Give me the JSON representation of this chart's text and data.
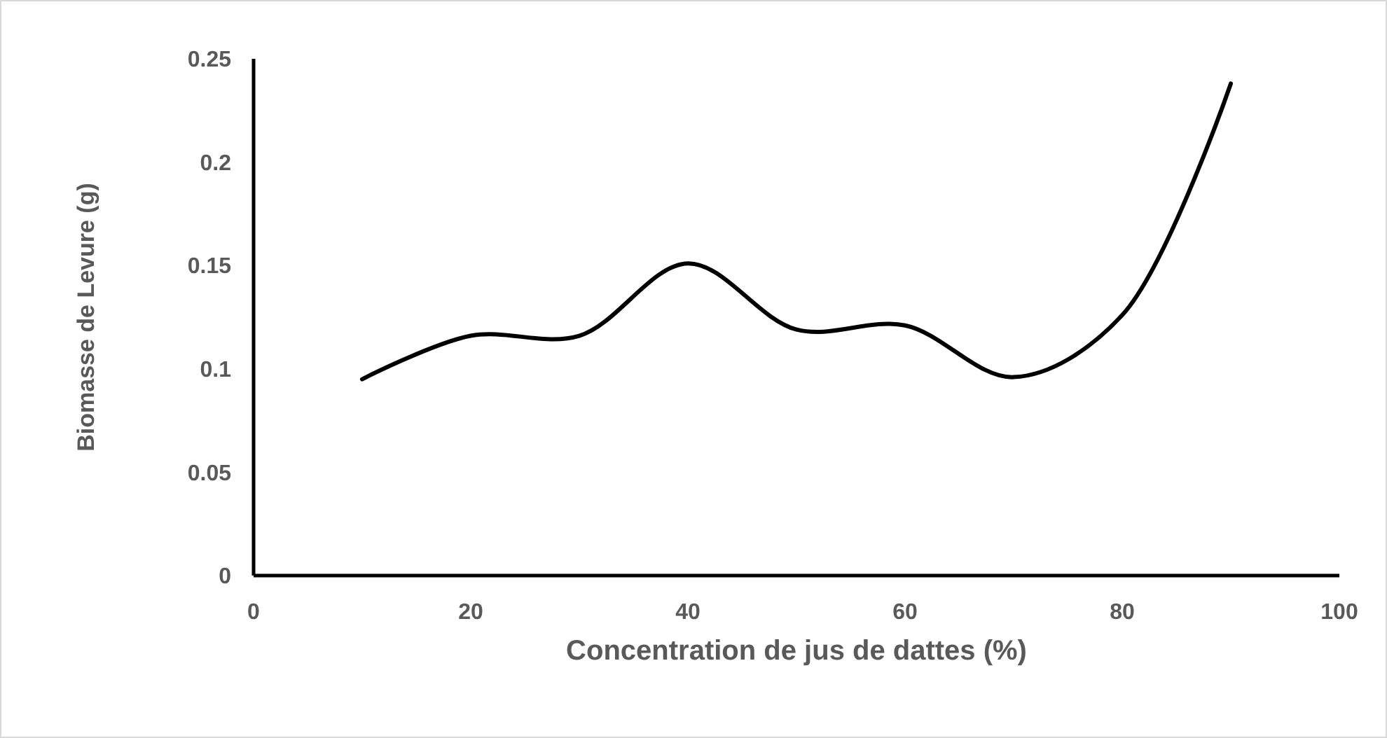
{
  "chart_data": {
    "type": "line",
    "xlabel": "Concentration de jus de dattes (%)",
    "ylabel": "Biomasse de Levure (g)",
    "x": [
      10,
      20,
      30,
      40,
      50,
      60,
      70,
      80,
      90
    ],
    "series": [
      {
        "color": "#000000",
        "values": [
          0.095,
          0.116,
          0.116,
          0.151,
          0.119,
          0.121,
          0.096,
          0.126,
          0.238
        ]
      }
    ],
    "xlim": [
      0,
      100
    ],
    "xticks": [
      0,
      20,
      40,
      60,
      80,
      100
    ],
    "ylim": [
      0,
      0.25
    ],
    "yticks": [
      0,
      0.05,
      0.1,
      0.15,
      0.2,
      0.25
    ],
    "grid": false,
    "marker": "none",
    "line_style": "solid"
  }
}
